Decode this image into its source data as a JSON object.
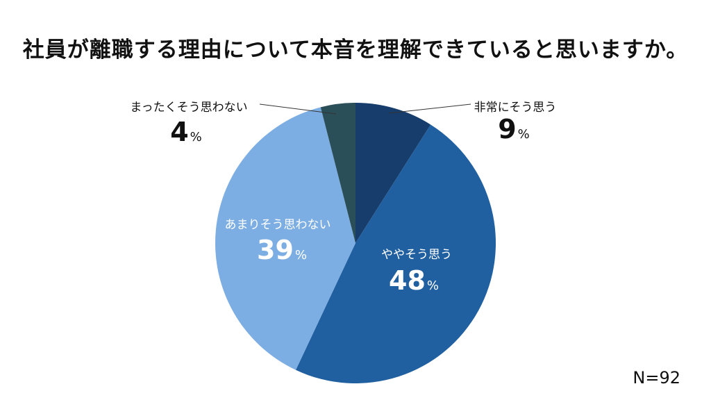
{
  "title": "社員が離職する理由について本音を理解できていると思いますか。",
  "sample_size": "N=92",
  "chart_data": {
    "type": "pie",
    "title": "社員が離職する理由について本音を理解できていると思いますか。",
    "unit": "%",
    "slices": [
      {
        "label": "非常にそう思う",
        "value": 9,
        "color": "#163d6b"
      },
      {
        "label": "ややそう思う",
        "value": 48,
        "color": "#2160a0"
      },
      {
        "label": "あまりそう思わない",
        "value": 39,
        "color": "#7daee3"
      },
      {
        "label": "まったくそう思わない",
        "value": 4,
        "color": "#2b4f58"
      }
    ]
  }
}
